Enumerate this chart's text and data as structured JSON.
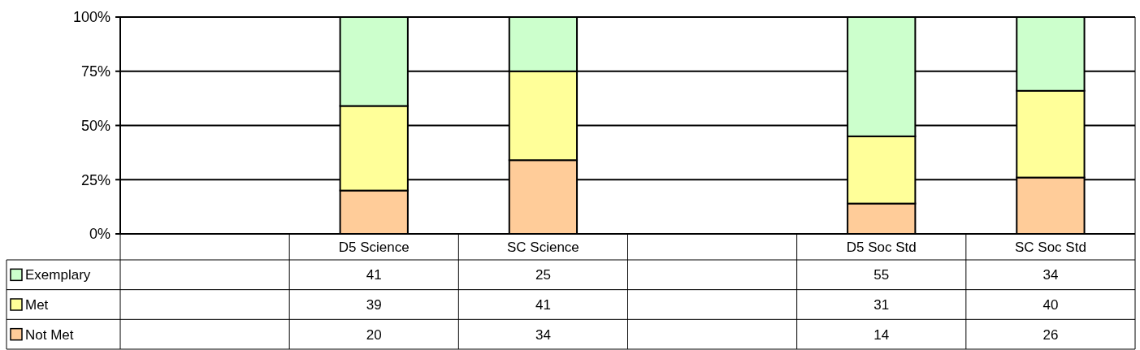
{
  "chart_data": {
    "type": "bar",
    "stacked": true,
    "categories": [
      null,
      "D5 Science",
      "SC Science",
      null,
      "D5 Soc Std",
      "SC Soc Std"
    ],
    "series": [
      {
        "name": "Not Met",
        "color": "#ffcc99",
        "values": [
          null,
          20,
          34,
          null,
          14,
          26
        ]
      },
      {
        "name": "Met",
        "color": "#ffff99",
        "values": [
          null,
          39,
          41,
          null,
          31,
          40
        ]
      },
      {
        "name": "Exemplary",
        "color": "#ccffcc",
        "values": [
          null,
          41,
          25,
          null,
          55,
          34
        ]
      }
    ],
    "ylim": [
      0,
      100
    ],
    "yticks": [
      {
        "value": 0,
        "label": "0%"
      },
      {
        "value": 25,
        "label": "25%"
      },
      {
        "value": 50,
        "label": "50%"
      },
      {
        "value": 75,
        "label": "75%"
      },
      {
        "value": 100,
        "label": "100%"
      }
    ],
    "grid": "y",
    "data_labels": true,
    "legend": "bottom left"
  }
}
